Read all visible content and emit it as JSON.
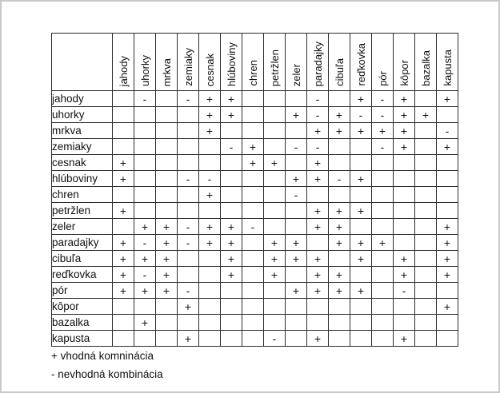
{
  "table": {
    "columns": [
      "jahody",
      "uhorky",
      "mrkva",
      "zemiaky",
      "cesnak",
      "hlúboviny",
      "chren",
      "petržlen",
      "zeler",
      "paradajky",
      "cibuľa",
      "reďkovka",
      "pór",
      "kôpor",
      "bazalka",
      "kapusta"
    ],
    "rows": [
      {
        "label": "jahody",
        "cells": [
          "",
          "-",
          "",
          "-",
          "+",
          "+",
          "",
          "",
          "",
          "-",
          "",
          "+",
          "-",
          "+",
          "",
          "+"
        ]
      },
      {
        "label": "uhorky",
        "cells": [
          "",
          "",
          "",
          "",
          "+",
          "+",
          "",
          "",
          "+",
          "-",
          "+",
          "-",
          "-",
          "+",
          "+",
          ""
        ]
      },
      {
        "label": "mrkva",
        "cells": [
          "",
          "",
          "",
          "",
          "+",
          "",
          "",
          "",
          "",
          "+",
          "+",
          "+",
          "+",
          "+",
          "",
          "-"
        ]
      },
      {
        "label": "zemiaky",
        "cells": [
          "",
          "",
          "",
          "",
          "",
          "-",
          "+",
          "",
          "-",
          "-",
          "",
          "",
          "-",
          "+",
          "",
          "+"
        ]
      },
      {
        "label": "cesnak",
        "cells": [
          "+",
          "",
          "",
          "",
          "",
          "",
          "+",
          "+",
          "",
          "+",
          "",
          "",
          "",
          "",
          "",
          ""
        ]
      },
      {
        "label": "hlúboviny",
        "cells": [
          "+",
          "",
          "",
          "-",
          "-",
          "",
          "",
          "",
          "+",
          "+",
          "-",
          "+",
          "",
          "",
          "",
          ""
        ]
      },
      {
        "label": "chren",
        "cells": [
          "",
          "",
          "",
          "",
          "+",
          "",
          "",
          "",
          "-",
          "",
          "",
          "",
          "",
          "",
          "",
          ""
        ]
      },
      {
        "label": "petržlen",
        "cells": [
          "+",
          "",
          "",
          "",
          "",
          "",
          "",
          "",
          "",
          "+",
          "+",
          "+",
          "",
          "",
          "",
          ""
        ]
      },
      {
        "label": "zeler",
        "cells": [
          "",
          "+",
          "+",
          "-",
          "+",
          "+",
          "-",
          "",
          "",
          "+",
          "+",
          "",
          "",
          "",
          "",
          "+"
        ]
      },
      {
        "label": "paradajky",
        "cells": [
          "+",
          "-",
          "+",
          "-",
          "+",
          "+",
          "",
          "+",
          "+",
          "",
          "+",
          "+",
          "+",
          "",
          "",
          "+"
        ]
      },
      {
        "label": "cibuľa",
        "cells": [
          "+",
          "+",
          "+",
          "",
          "",
          "+",
          "",
          "+",
          "+",
          "+",
          "",
          "+",
          "",
          "+",
          "",
          "+"
        ]
      },
      {
        "label": "reďkovka",
        "cells": [
          "+",
          "-",
          "+",
          "",
          "",
          "+",
          "",
          "+",
          "",
          "+",
          "+",
          "",
          "",
          "+",
          "",
          "+"
        ]
      },
      {
        "label": "pór",
        "cells": [
          "+",
          "+",
          "+",
          "-",
          "",
          "",
          "",
          "",
          "+",
          "+",
          "+",
          "+",
          "",
          "-",
          "",
          ""
        ]
      },
      {
        "label": "kôpor",
        "cells": [
          "",
          "",
          "",
          "+",
          "",
          "",
          "",
          "",
          "",
          "",
          "",
          "",
          "",
          "",
          "",
          "+"
        ]
      },
      {
        "label": "bazalka",
        "cells": [
          "",
          "+",
          "",
          "",
          "",
          "",
          "",
          "",
          "",
          "",
          "",
          "",
          "",
          "",
          "",
          ""
        ]
      },
      {
        "label": "kapusta",
        "cells": [
          "",
          "",
          "",
          "+",
          "",
          "",
          "",
          "-",
          "",
          "+",
          "",
          "",
          "",
          "+",
          "",
          ""
        ]
      }
    ]
  },
  "legend": {
    "positive": "+ vhodná komninácia",
    "negative": "- nevhodná kombinácia"
  }
}
